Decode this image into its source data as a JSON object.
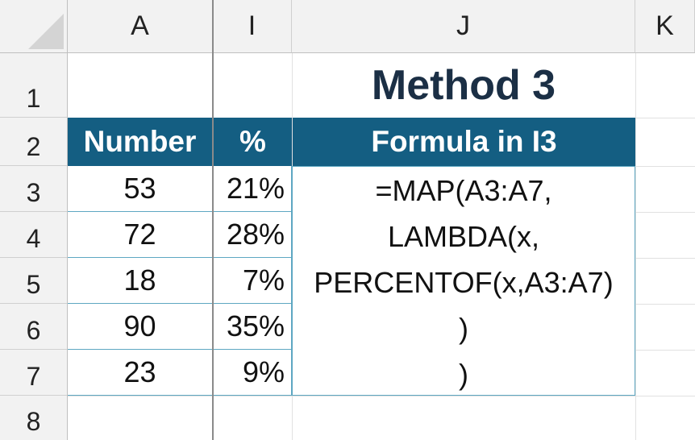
{
  "sheet": {
    "columns": [
      "A",
      "I",
      "J",
      "K"
    ],
    "rows": [
      "1",
      "2",
      "3",
      "4",
      "5",
      "6",
      "7",
      "8"
    ],
    "title": "Method 3",
    "headers": {
      "number": "Number",
      "percent": "%",
      "formula": "Formula in I3"
    },
    "data": [
      {
        "number": "53",
        "percent": "21%"
      },
      {
        "number": "72",
        "percent": "28%"
      },
      {
        "number": "18",
        "percent": "7%"
      },
      {
        "number": "90",
        "percent": "35%"
      },
      {
        "number": "23",
        "percent": "9%"
      }
    ],
    "formula_lines": [
      "=MAP(A3:A7,",
      "LAMBDA(x,",
      "PERCENTOF(x,A3:A7)",
      ")",
      ")"
    ]
  },
  "colors": {
    "header_fill": "#145e82",
    "title_color": "#1b2f45",
    "table_border": "#5ea7c2"
  }
}
